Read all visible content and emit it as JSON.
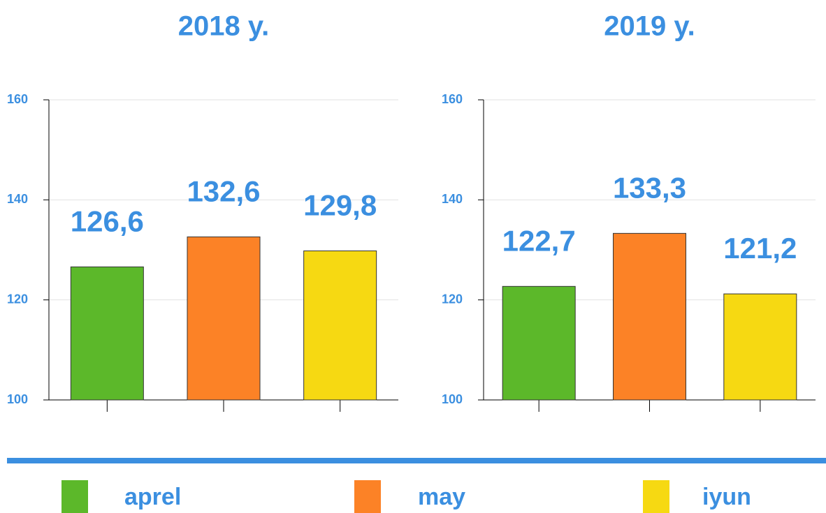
{
  "chart_data": [
    {
      "type": "bar",
      "title": "2018 y.",
      "categories": [
        null,
        null,
        null
      ],
      "values": [
        126.6,
        132.6,
        129.8
      ],
      "value_labels": [
        "126,6",
        "132,6",
        "129,8"
      ],
      "ylim": [
        100,
        160
      ],
      "yticks": [
        100,
        120,
        140,
        160
      ],
      "grid": true
    },
    {
      "type": "bar",
      "title": "2019 y.",
      "categories": [
        null,
        null,
        null
      ],
      "values": [
        122.7,
        133.3,
        121.2
      ],
      "value_labels": [
        "122,7",
        "133,3",
        "121,2"
      ],
      "ylim": [
        100,
        160
      ],
      "yticks": [
        100,
        120,
        140,
        160
      ],
      "grid": true
    }
  ],
  "legend": [
    {
      "name": "aprel",
      "color": "#5cb82a"
    },
    {
      "name": "may",
      "color": "#fc8226"
    },
    {
      "name": "iyun",
      "color": "#f6d912"
    }
  ]
}
